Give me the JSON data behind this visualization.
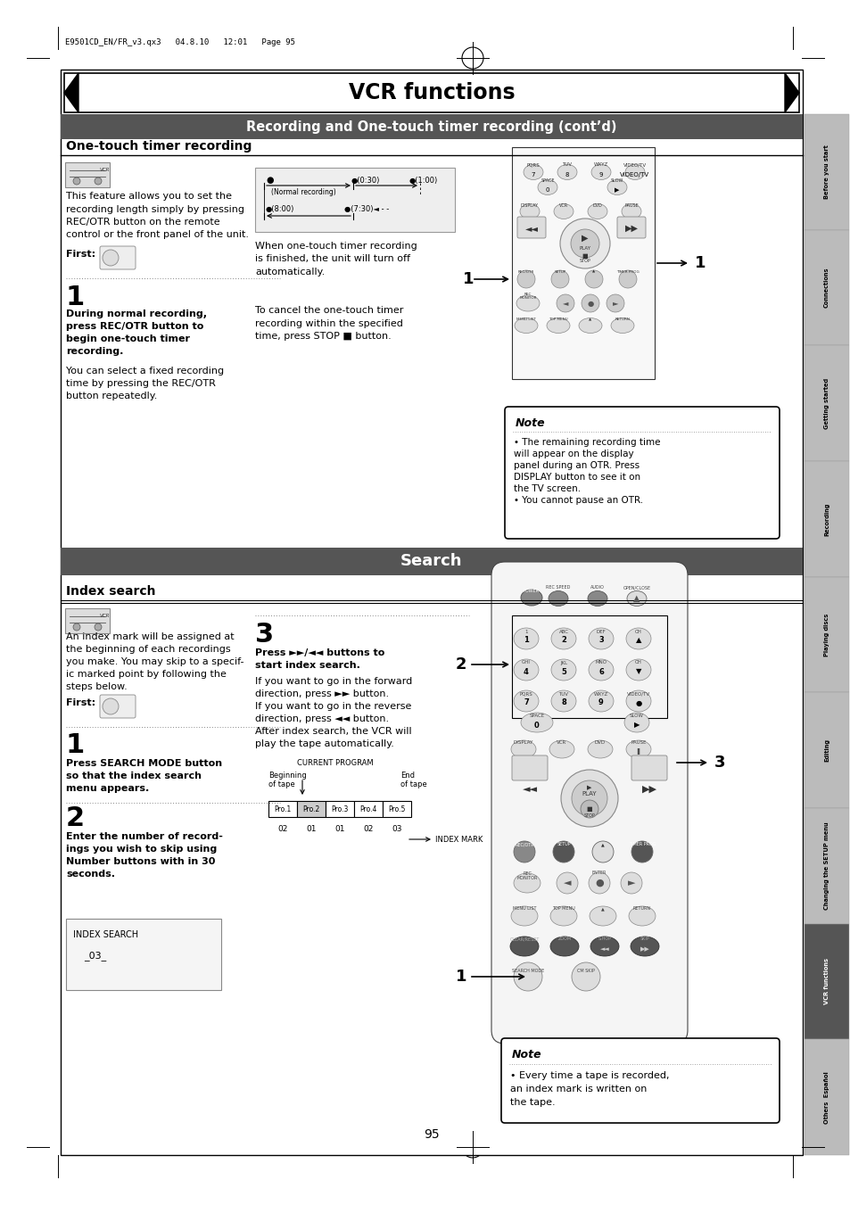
{
  "page_title": "VCR functions",
  "subtitle": "Recording and One-touch timer recording (cont’d)",
  "section1_title": "One-touch timer recording",
  "section2_title": "Search",
  "section3_title": "Index search",
  "header_text": "E9501CD_EN/FR_v3.qx3   04.8.10   12:01   Page 95",
  "page_number": "95",
  "bg_color": "#ffffff",
  "subtitle_bg": "#555555",
  "search_bg": "#555555",
  "tab_right_labels": [
    "Before you start",
    "Connections",
    "Getting started",
    "Recording",
    "Playing discs",
    "Editing",
    "Changing the SETUP menu",
    "VCR functions",
    "Others  Español"
  ],
  "tab_colors": [
    "#bbbbbb",
    "#bbbbbb",
    "#bbbbbb",
    "#bbbbbb",
    "#bbbbbb",
    "#bbbbbb",
    "#bbbbbb",
    "#555555",
    "#bbbbbb"
  ],
  "tab_text_colors": [
    "#000000",
    "#000000",
    "#000000",
    "#000000",
    "#000000",
    "#000000",
    "#000000",
    "#ffffff",
    "#000000"
  ],
  "note_otr_title": "Note",
  "note_otr_text": "• The remaining recording time\nwill appear on the display\npanel during an OTR. Press\nDISPLAY button to see it on\nthe TV screen.\n• You cannot pause an OTR.",
  "note_index_text": "• Every time a tape is recorded,\nan index mark is written on\nthe tape.",
  "body_otr": "This feature allows you to set the\nrecording length simply by pressing\nREC/OTR button on the remote\ncontrol or the front panel of the unit.",
  "otr_step1_bold": [
    "During normal recording,",
    "press REC/OTR button to",
    "begin one-touch timer",
    "recording."
  ],
  "otr_step1_normal": [
    "You can select a fixed recording",
    "time by pressing the REC/OTR",
    "button repeatedly."
  ],
  "otr_mid1": [
    "When one-touch timer recording",
    "is finished, the unit will turn off",
    "automatically."
  ],
  "otr_mid2": [
    "To cancel the one-touch timer",
    "recording within the specified",
    "time, press STOP ■ button."
  ],
  "idx_body": [
    "An index mark will be assigned at",
    "the beginning of each recordings",
    "you make. You may skip to a specif-",
    "ic marked point by following the",
    "steps below."
  ],
  "idx_step1_bold": [
    "Press SEARCH MODE button",
    "so that the index search",
    "menu appears."
  ],
  "idx_step2_bold": [
    "Enter the number of record-",
    "ings you wish to skip using",
    "Number buttons with in 30",
    "seconds."
  ],
  "idx_step3_bold": [
    "Press ►►/◄◄ buttons to",
    "start index search."
  ],
  "idx_step3_normal": [
    "If you want to go in the forward",
    "direction, press ►► button.",
    "If you want to go in the reverse",
    "direction, press ◄◄ button.",
    "After index search, the VCR will",
    "play the tape automatically."
  ],
  "prog_names": [
    "Pro.1",
    "Pro.2",
    "Pro.3",
    "Pro.4",
    "Pro.5"
  ],
  "prog_nums": [
    "02",
    "01",
    "01",
    "02",
    "03"
  ]
}
